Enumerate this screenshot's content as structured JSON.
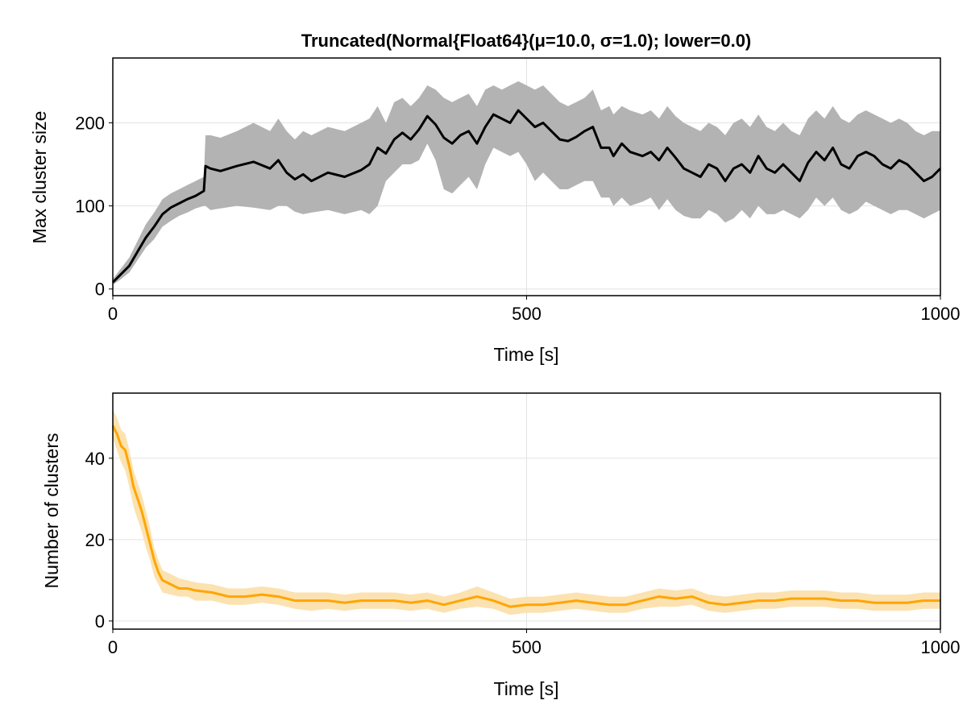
{
  "chart_data": [
    {
      "type": "line",
      "title": "Truncated(Normal{Float64}(μ=10.0, σ=1.0); lower=0.0)",
      "xlabel": "Time [s]",
      "ylabel": "Max cluster size",
      "xlim": [
        0,
        1000
      ],
      "ylim": [
        -8,
        278
      ],
      "xticks": [
        0,
        500,
        1000
      ],
      "yticks": [
        0,
        100,
        200
      ],
      "grid": true,
      "colors": {
        "line": "#000000",
        "band": "#b3b3b3"
      },
      "series": [
        {
          "x": [
            0,
            10,
            20,
            30,
            40,
            50,
            60,
            70,
            80,
            90,
            100,
            110,
            112,
            118,
            130,
            150,
            170,
            190,
            200,
            210,
            220,
            230,
            240,
            260,
            280,
            300,
            310,
            320,
            330,
            340,
            350,
            360,
            370,
            380,
            390,
            400,
            410,
            420,
            430,
            440,
            450,
            460,
            470,
            480,
            490,
            500,
            510,
            520,
            530,
            540,
            550,
            560,
            570,
            580,
            590,
            600,
            605,
            615,
            625,
            640,
            650,
            660,
            670,
            680,
            690,
            700,
            710,
            720,
            730,
            740,
            750,
            760,
            770,
            780,
            790,
            800,
            810,
            820,
            830,
            840,
            850,
            860,
            870,
            880,
            890,
            900,
            910,
            920,
            930,
            940,
            950,
            960,
            970,
            980,
            990,
            1000
          ],
          "y": [
            8,
            18,
            28,
            45,
            62,
            75,
            90,
            98,
            103,
            108,
            112,
            118,
            148,
            145,
            142,
            148,
            153,
            145,
            155,
            140,
            132,
            138,
            130,
            140,
            135,
            143,
            150,
            170,
            163,
            180,
            188,
            180,
            192,
            208,
            198,
            182,
            175,
            185,
            190,
            175,
            195,
            210,
            205,
            200,
            215,
            205,
            195,
            200,
            190,
            180,
            178,
            183,
            190,
            195,
            170,
            170,
            160,
            175,
            165,
            160,
            165,
            155,
            170,
            158,
            145,
            140,
            135,
            150,
            145,
            130,
            145,
            150,
            140,
            160,
            145,
            140,
            150,
            140,
            130,
            152,
            165,
            155,
            170,
            150,
            145,
            160,
            165,
            160,
            150,
            145,
            155,
            150,
            140,
            130,
            135,
            145
          ],
          "lower": [
            5,
            12,
            20,
            35,
            50,
            60,
            75,
            82,
            88,
            92,
            97,
            100,
            100,
            95,
            97,
            100,
            98,
            95,
            100,
            100,
            93,
            90,
            92,
            95,
            90,
            95,
            90,
            100,
            130,
            140,
            150,
            150,
            155,
            175,
            155,
            120,
            115,
            125,
            135,
            120,
            150,
            170,
            165,
            160,
            165,
            150,
            130,
            140,
            130,
            120,
            120,
            125,
            130,
            130,
            110,
            110,
            100,
            110,
            100,
            105,
            110,
            95,
            108,
            95,
            88,
            85,
            85,
            95,
            90,
            80,
            85,
            95,
            85,
            100,
            90,
            90,
            95,
            90,
            85,
            95,
            110,
            100,
            110,
            95,
            90,
            95,
            105,
            100,
            95,
            90,
            95,
            95,
            90,
            85,
            90,
            95
          ],
          "upper": [
            12,
            25,
            38,
            58,
            78,
            92,
            108,
            115,
            120,
            125,
            130,
            135,
            185,
            185,
            182,
            190,
            200,
            190,
            205,
            190,
            180,
            190,
            185,
            195,
            190,
            200,
            205,
            220,
            200,
            225,
            230,
            220,
            230,
            245,
            240,
            230,
            225,
            230,
            235,
            220,
            240,
            245,
            240,
            245,
            250,
            245,
            240,
            245,
            235,
            225,
            220,
            225,
            230,
            240,
            215,
            220,
            210,
            220,
            215,
            210,
            215,
            205,
            220,
            208,
            200,
            195,
            190,
            200,
            195,
            185,
            200,
            205,
            195,
            210,
            195,
            190,
            200,
            190,
            185,
            205,
            215,
            205,
            220,
            205,
            200,
            210,
            215,
            210,
            205,
            200,
            205,
            200,
            190,
            185,
            190,
            190
          ]
        }
      ]
    },
    {
      "type": "line",
      "title": "",
      "xlabel": "Time [s]",
      "ylabel": "Number of clusters",
      "xlim": [
        0,
        1000
      ],
      "ylim": [
        -2,
        56
      ],
      "xticks": [
        0,
        500,
        1000
      ],
      "yticks": [
        0,
        20,
        40
      ],
      "grid": true,
      "colors": {
        "line": "#ffa500",
        "band": "#fbe2b0"
      },
      "series": [
        {
          "x": [
            0,
            5,
            10,
            15,
            20,
            25,
            30,
            35,
            40,
            45,
            50,
            55,
            60,
            70,
            80,
            90,
            100,
            120,
            140,
            160,
            180,
            200,
            220,
            240,
            260,
            280,
            300,
            320,
            340,
            360,
            380,
            400,
            420,
            440,
            460,
            480,
            500,
            520,
            540,
            560,
            580,
            600,
            620,
            640,
            660,
            680,
            700,
            720,
            740,
            760,
            780,
            800,
            820,
            840,
            860,
            880,
            900,
            920,
            940,
            960,
            980,
            1000
          ],
          "y": [
            48,
            46,
            43,
            42,
            38,
            33,
            30,
            27,
            23,
            19,
            15,
            12,
            10,
            9,
            8,
            8,
            7.5,
            7,
            6,
            6,
            6.5,
            6,
            5,
            5,
            5,
            4.5,
            5,
            5,
            5,
            4.5,
            5,
            4,
            5,
            6,
            5,
            3.5,
            4,
            4,
            4.5,
            5,
            4.5,
            4,
            4,
            5,
            6,
            5.5,
            6,
            4.5,
            4,
            4.5,
            5,
            5,
            5.5,
            5.5,
            5.5,
            5,
            5,
            4.5,
            4.5,
            4.5,
            5,
            5
          ],
          "lower": [
            45,
            42,
            39,
            37,
            33,
            28,
            25,
            22,
            18,
            15,
            11,
            9,
            7,
            6.5,
            6,
            6,
            5,
            5,
            4,
            4,
            4.5,
            4,
            3,
            2.5,
            3,
            2.5,
            3,
            3,
            3,
            2.5,
            3,
            2,
            3,
            3.5,
            3,
            1.5,
            2,
            2,
            2.5,
            3,
            2.5,
            2,
            2,
            3,
            3.5,
            3.5,
            4,
            2.5,
            2,
            2.5,
            3,
            3,
            3.5,
            3.5,
            3.5,
            3,
            3,
            2.5,
            2.5,
            2.5,
            3,
            3
          ],
          "upper": [
            52,
            50,
            47,
            46,
            42,
            37,
            34,
            31,
            27,
            23,
            18,
            15,
            12.5,
            11.5,
            10.5,
            10,
            9.5,
            9,
            8,
            8,
            8.5,
            8,
            7,
            7,
            7,
            6.5,
            7,
            7,
            7,
            6.5,
            7,
            6,
            7,
            8.5,
            7,
            5.5,
            6,
            6,
            6.5,
            7,
            6.5,
            6,
            6,
            7,
            8,
            7.5,
            8,
            6.5,
            6,
            6.5,
            7,
            7,
            7.5,
            7.5,
            7.5,
            7,
            7,
            6.5,
            6.5,
            6.5,
            7,
            7
          ]
        }
      ]
    }
  ]
}
